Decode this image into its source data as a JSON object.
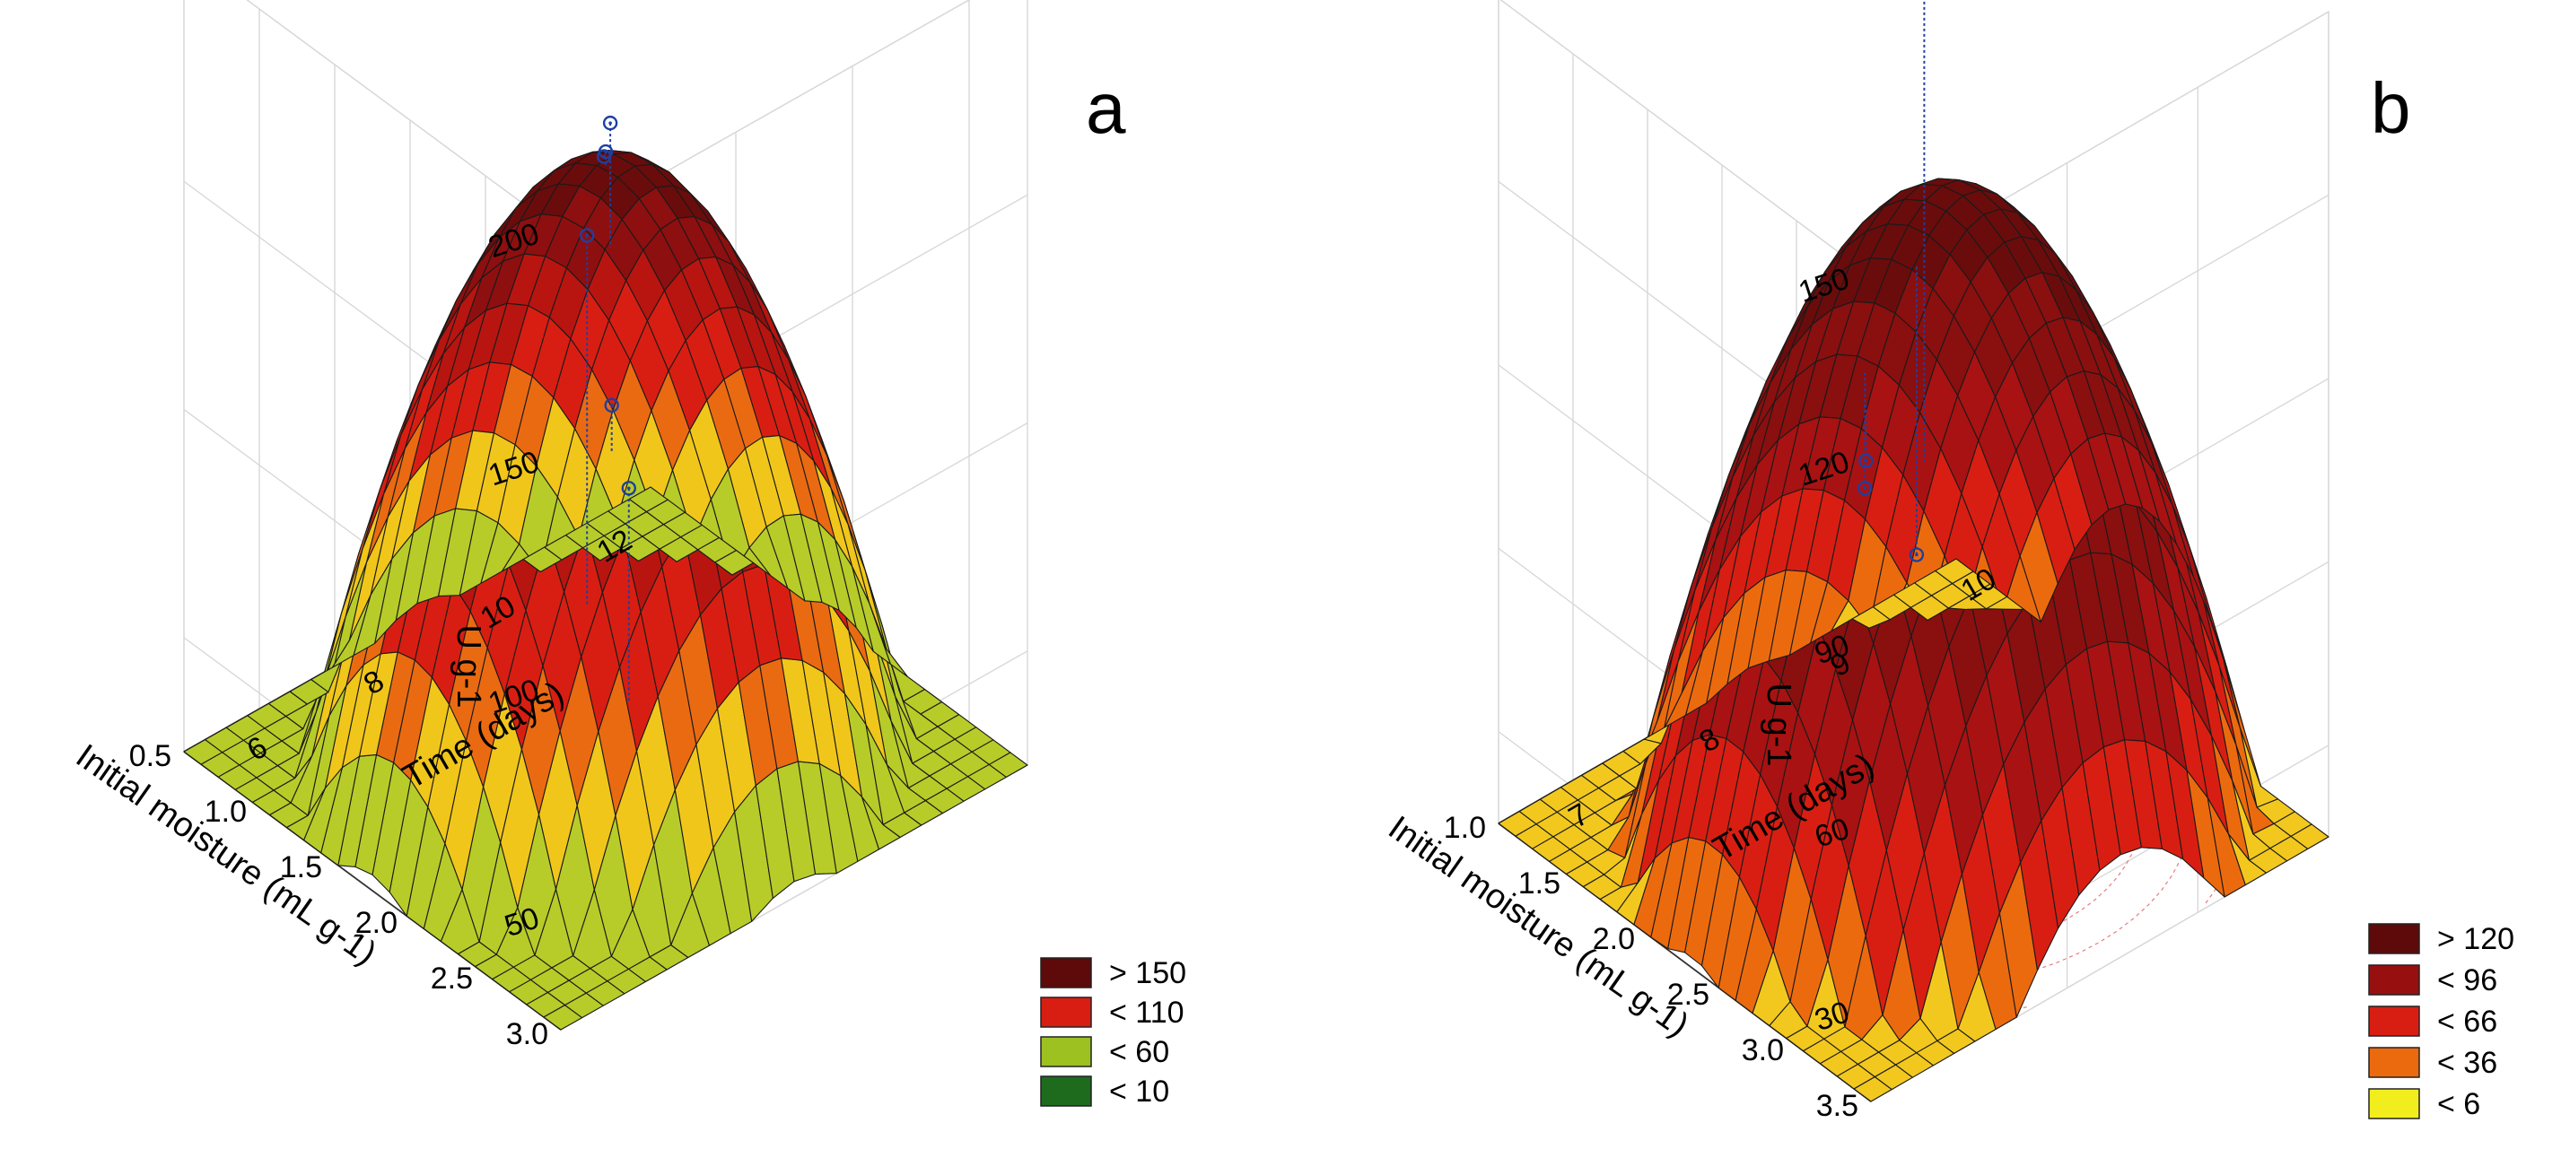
{
  "chart_data": [
    {
      "panel": "a",
      "type": "surface3d",
      "zlabel": "U g-1",
      "xlabel": "Time (days)",
      "ylabel": "Initial moisture (mL g-1)",
      "x_ticks": [
        "6",
        "8",
        "10",
        "12"
      ],
      "y_ticks": [
        "0.5",
        "1.0",
        "1.5",
        "2.0",
        "2.5",
        "3.0"
      ],
      "z_ticks": [
        "50",
        "100",
        "150",
        "200"
      ],
      "xlim": [
        5,
        13
      ],
      "ylim": [
        0.5,
        3.0
      ],
      "zlim": [
        25,
        200
      ],
      "surface": {
        "peak_x": 9,
        "peak_y": 1.75,
        "peak_z": 155,
        "edge_z": 45,
        "corner_z": 0
      },
      "observed_points": [
        {
          "x": 7,
          "y": 2.4,
          "z": 170
        },
        {
          "x": 9,
          "y": 1.75,
          "z": 158
        },
        {
          "x": 9.1,
          "y": 1.7,
          "z": 155
        },
        {
          "x": 10.5,
          "y": 1.2,
          "z": 140
        },
        {
          "x": 7.2,
          "y": 2.6,
          "z": 118
        },
        {
          "x": 11.3,
          "y": 0.9,
          "z": 65
        }
      ],
      "legend": [
        {
          "label": "> 150",
          "color": "#5e0a0a"
        },
        {
          "label": "< 110",
          "color": "#d81e12"
        },
        {
          "label": "< 60",
          "color": "#9cc121"
        },
        {
          "label": "< 10",
          "color": "#1e6b1e"
        }
      ]
    },
    {
      "panel": "b",
      "type": "surface3d",
      "zlabel": "U g-1",
      "xlabel": "Time (days)",
      "ylabel": "Initial moisture (mL g-1)",
      "x_ticks": [
        "7",
        "8",
        "9",
        "10"
      ],
      "y_ticks": [
        "1.0",
        "1.5",
        "2.0",
        "2.5",
        "3.0",
        "3.5"
      ],
      "z_ticks": [
        "30",
        "60",
        "90",
        "120",
        "150"
      ],
      "xlim": [
        6.5,
        10
      ],
      "ylim": [
        1.0,
        3.5
      ],
      "zlim": [
        15,
        150
      ],
      "surface": {
        "peak_x": 8.4,
        "peak_y": 2.3,
        "peak_z": 118,
        "edge_z": 30,
        "corner_z": 0
      },
      "observed_points": [
        {
          "x": 9.3,
          "y": 1.4,
          "z": 130
        },
        {
          "x": 7.6,
          "y": 2.5,
          "z": 88
        },
        {
          "x": 7.65,
          "y": 2.45,
          "z": 82
        },
        {
          "x": 8.9,
          "y": 1.7,
          "z": 42
        }
      ],
      "legend": [
        {
          "label": "> 120",
          "color": "#5e0a0a"
        },
        {
          "label": "< 96",
          "color": "#980f0f"
        },
        {
          "label": "< 66",
          "color": "#d81e12"
        },
        {
          "label": "< 36",
          "color": "#ec6a0e"
        },
        {
          "label": "< 6",
          "color": "#f2ee1e"
        }
      ]
    }
  ]
}
